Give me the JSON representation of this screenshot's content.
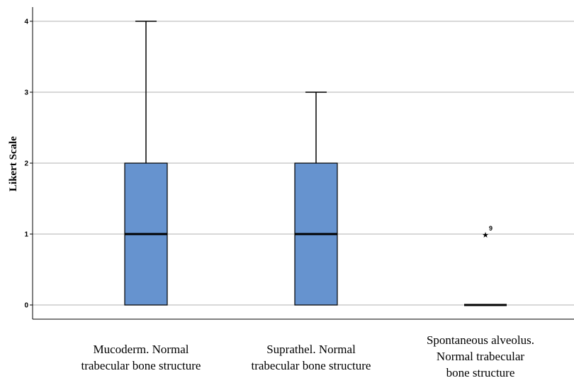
{
  "chart_data": {
    "type": "boxplot",
    "ylabel": "Likert Scale",
    "ylim": [
      -0.2,
      4.2
    ],
    "yticks": [
      "0",
      "1",
      "2",
      "3",
      "4"
    ],
    "grid": true,
    "colors": {
      "box": "#6693cf",
      "grid": "#cccccc",
      "line": "#000000"
    },
    "categories": [
      {
        "label": [
          "Mucoderm. Normal",
          "trabecular bone structure"
        ],
        "min": 0,
        "q1": 0,
        "median": 1,
        "q3": 2,
        "max": 4,
        "outliers": []
      },
      {
        "label": [
          "Suprathel. Normal",
          "trabecular bone structure"
        ],
        "min": 0,
        "q1": 0,
        "median": 1,
        "q3": 2,
        "max": 3,
        "outliers": []
      },
      {
        "label": [
          "Spontaneous alveolus.",
          "Normal trabecular",
          "bone structure"
        ],
        "min": 0,
        "q1": 0,
        "median": 0,
        "q3": 0,
        "max": 0,
        "outliers": [
          {
            "value": 1,
            "label": "9",
            "marker": "star"
          }
        ]
      }
    ]
  }
}
